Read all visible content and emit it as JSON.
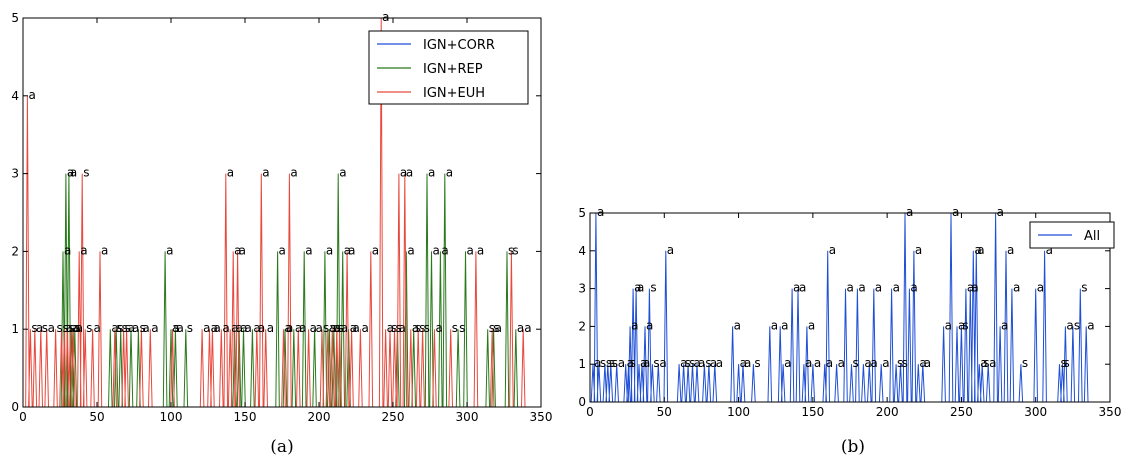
{
  "chart_data": [
    {
      "type": "line",
      "caption": "(a)",
      "xlim": [
        0,
        350
      ],
      "ylim": [
        0,
        5
      ],
      "xticks": [
        "0",
        "50",
        "100",
        "150",
        "200",
        "250",
        "300",
        "350"
      ],
      "yticks": [
        "0",
        "1",
        "2",
        "3",
        "4",
        "5"
      ],
      "grid": false,
      "legend_position": "top-right",
      "legend": [
        "IGN+CORR",
        "IGN+REP",
        "IGN+EUH"
      ],
      "colors": {
        "IGN+CORR": "#1f4fd6",
        "IGN+REP": "#2a7a1c",
        "IGN+EUH": "#e8493d"
      },
      "series": [
        {
          "name": "IGN+CORR",
          "points": []
        },
        {
          "name": "IGN+REP",
          "points": [
            [
              27,
              2,
              "a"
            ],
            [
              29,
              3,
              "a"
            ],
            [
              31,
              3,
              "a"
            ],
            [
              33,
              1,
              "a"
            ],
            [
              35,
              1,
              "a"
            ],
            [
              59,
              1,
              "a"
            ],
            [
              63,
              1,
              "s"
            ],
            [
              66,
              1,
              "s"
            ],
            [
              73,
              1,
              "a"
            ],
            [
              78,
              1,
              "s"
            ],
            [
              96,
              2,
              "a"
            ],
            [
              100,
              1,
              "a"
            ],
            [
              103,
              1,
              "a"
            ],
            [
              110,
              1,
              "s"
            ],
            [
              143,
              1,
              "a"
            ],
            [
              146,
              1,
              "a"
            ],
            [
              149,
              1,
              "a"
            ],
            [
              155,
              1,
              "a"
            ],
            [
              172,
              2,
              "a"
            ],
            [
              177,
              1,
              "a"
            ],
            [
              183,
              1,
              "a"
            ],
            [
              190,
              2,
              "a"
            ],
            [
              197,
              1,
              "a"
            ],
            [
              204,
              2,
              "a"
            ],
            [
              207,
              1,
              "s"
            ],
            [
              210,
              1,
              "s"
            ],
            [
              213,
              3,
              "a"
            ],
            [
              216,
              2,
              "a"
            ],
            [
              220,
              1,
              "a"
            ],
            [
              253,
              1,
              "a"
            ],
            [
              259,
              2,
              "a"
            ],
            [
              264,
              1,
              "s"
            ],
            [
              273,
              3,
              "a"
            ],
            [
              276,
              2,
              "a"
            ],
            [
              282,
              2,
              "a"
            ],
            [
              285,
              3,
              "a"
            ],
            [
              294,
              1,
              "s"
            ],
            [
              299,
              2,
              "a"
            ],
            [
              314,
              1,
              "s"
            ],
            [
              318,
              1,
              "a"
            ],
            [
              327,
              2,
              "s"
            ],
            [
              333,
              1,
              "a"
            ]
          ]
        },
        {
          "name": "IGN+EUH",
          "points": [
            [
              3,
              4,
              "a"
            ],
            [
              5,
              1,
              "s"
            ],
            [
              8,
              1,
              "a"
            ],
            [
              12,
              1,
              "s"
            ],
            [
              16,
              1,
              "a"
            ],
            [
              22,
              1,
              "s"
            ],
            [
              26,
              1,
              "s"
            ],
            [
              28,
              1,
              "a"
            ],
            [
              30,
              1,
              "s"
            ],
            [
              32,
              1,
              "a"
            ],
            [
              34,
              1,
              "s"
            ],
            [
              38,
              2,
              "a"
            ],
            [
              40,
              3,
              "s"
            ],
            [
              42,
              1,
              "s"
            ],
            [
              47,
              1,
              "a"
            ],
            [
              52,
              2,
              "a"
            ],
            [
              62,
              1,
              "s"
            ],
            [
              68,
              1,
              "s"
            ],
            [
              70,
              1,
              "a"
            ],
            [
              80,
              1,
              "a"
            ],
            [
              86,
              1,
              "a"
            ],
            [
              101,
              1,
              "s"
            ],
            [
              121,
              1,
              "a"
            ],
            [
              126,
              1,
              "a"
            ],
            [
              128,
              1,
              "a"
            ],
            [
              134,
              1,
              "a"
            ],
            [
              137,
              3,
              "a"
            ],
            [
              140,
              1,
              "a"
            ],
            [
              142,
              2,
              "a"
            ],
            [
              145,
              2,
              "a"
            ],
            [
              158,
              1,
              "a"
            ],
            [
              161,
              3,
              "a"
            ],
            [
              164,
              1,
              "a"
            ],
            [
              176,
              1,
              "a"
            ],
            [
              180,
              3,
              "a"
            ],
            [
              186,
              1,
              "a"
            ],
            [
              193,
              1,
              "a"
            ],
            [
              202,
              1,
              "s"
            ],
            [
              206,
              1,
              "a"
            ],
            [
              209,
              1,
              "a"
            ],
            [
              212,
              1,
              "s"
            ],
            [
              214,
              1,
              "a"
            ],
            [
              219,
              2,
              "a"
            ],
            [
              222,
              1,
              "a"
            ],
            [
              228,
              1,
              "a"
            ],
            [
              235,
              2,
              "a"
            ],
            [
              242,
              5,
              "a"
            ],
            [
              245,
              1,
              "a"
            ],
            [
              248,
              1,
              "s"
            ],
            [
              251,
              1,
              "s"
            ],
            [
              254,
              3,
              "a"
            ],
            [
              258,
              3,
              "a"
            ],
            [
              262,
              1,
              "a"
            ],
            [
              267,
              1,
              "s"
            ],
            [
              270,
              1,
              "s"
            ],
            [
              278,
              1,
              "a"
            ],
            [
              289,
              1,
              "s"
            ],
            [
              306,
              2,
              "a"
            ],
            [
              317,
              1,
              "s"
            ],
            [
              330,
              2,
              "s"
            ],
            [
              338,
              1,
              "a"
            ]
          ]
        }
      ]
    },
    {
      "type": "line",
      "caption": "(b)",
      "xlim": [
        0,
        350
      ],
      "ylim": [
        0,
        5
      ],
      "xticks": [
        "0",
        "50",
        "100",
        "150",
        "200",
        "250",
        "300",
        "350"
      ],
      "yticks": [
        "0",
        "1",
        "2",
        "3",
        "4",
        "5"
      ],
      "grid": false,
      "legend_position": "top-right",
      "legend": [
        "All"
      ],
      "colors": {
        "All": "#1f4fd6"
      },
      "series": [
        {
          "name": "All",
          "points": [
            [
              2,
              1,
              "a"
            ],
            [
              4,
              5,
              "a"
            ],
            [
              6,
              1,
              "s"
            ],
            [
              10,
              1,
              "s"
            ],
            [
              12,
              1,
              "s"
            ],
            [
              14,
              1,
              "s"
            ],
            [
              18,
              1,
              "a"
            ],
            [
              24,
              1,
              "a"
            ],
            [
              26,
              1,
              "s"
            ],
            [
              27,
              2,
              "a"
            ],
            [
              29,
              3,
              "a"
            ],
            [
              31,
              3,
              "a"
            ],
            [
              33,
              1,
              "a"
            ],
            [
              35,
              1,
              "a"
            ],
            [
              37,
              2,
              "a"
            ],
            [
              40,
              3,
              "s"
            ],
            [
              42,
              1,
              "s"
            ],
            [
              46,
              1,
              "a"
            ],
            [
              51,
              4,
              "a"
            ],
            [
              60,
              1,
              "a"
            ],
            [
              63,
              1,
              "s"
            ],
            [
              66,
              1,
              "s"
            ],
            [
              69,
              1,
              "a"
            ],
            [
              72,
              1,
              "a"
            ],
            [
              77,
              1,
              "s"
            ],
            [
              80,
              1,
              "a"
            ],
            [
              84,
              1,
              "a"
            ],
            [
              96,
              2,
              "a"
            ],
            [
              100,
              1,
              "a"
            ],
            [
              103,
              1,
              "a"
            ],
            [
              110,
              1,
              "s"
            ],
            [
              121,
              2,
              "a"
            ],
            [
              128,
              2,
              "a"
            ],
            [
              130,
              1,
              "a"
            ],
            [
              136,
              3,
              "a"
            ],
            [
              140,
              3,
              "a"
            ],
            [
              144,
              1,
              "a"
            ],
            [
              146,
              2,
              "a"
            ],
            [
              150,
              1,
              "a"
            ],
            [
              158,
              1,
              "a"
            ],
            [
              160,
              4,
              "a"
            ],
            [
              166,
              1,
              "a"
            ],
            [
              172,
              3,
              "a"
            ],
            [
              176,
              1,
              "s"
            ],
            [
              180,
              3,
              "a"
            ],
            [
              184,
              1,
              "a"
            ],
            [
              188,
              1,
              "a"
            ],
            [
              191,
              3,
              "a"
            ],
            [
              196,
              1,
              "a"
            ],
            [
              203,
              3,
              "a"
            ],
            [
              206,
              1,
              "s"
            ],
            [
              209,
              1,
              "s"
            ],
            [
              212,
              5,
              "a"
            ],
            [
              215,
              3,
              "a"
            ],
            [
              218,
              4,
              "a"
            ],
            [
              221,
              1,
              "a"
            ],
            [
              224,
              1,
              "a"
            ],
            [
              238,
              2,
              "a"
            ],
            [
              243,
              5,
              "a"
            ],
            [
              247,
              2,
              "a"
            ],
            [
              250,
              2,
              "s"
            ],
            [
              253,
              3,
              "a"
            ],
            [
              256,
              3,
              "a"
            ],
            [
              258,
              4,
              "a"
            ],
            [
              260,
              4,
              "a"
            ],
            [
              262,
              1,
              "a"
            ],
            [
              264,
              1,
              "s"
            ],
            [
              268,
              1,
              "a"
            ],
            [
              273,
              5,
              "a"
            ],
            [
              276,
              2,
              "a"
            ],
            [
              280,
              4,
              "a"
            ],
            [
              284,
              3,
              "a"
            ],
            [
              290,
              1,
              "s"
            ],
            [
              300,
              3,
              "a"
            ],
            [
              306,
              4,
              "a"
            ],
            [
              316,
              1,
              "s"
            ],
            [
              318,
              1,
              "s"
            ],
            [
              320,
              2,
              "a"
            ],
            [
              325,
              2,
              "s"
            ],
            [
              330,
              3,
              "s"
            ],
            [
              334,
              2,
              "a"
            ]
          ]
        }
      ]
    }
  ]
}
